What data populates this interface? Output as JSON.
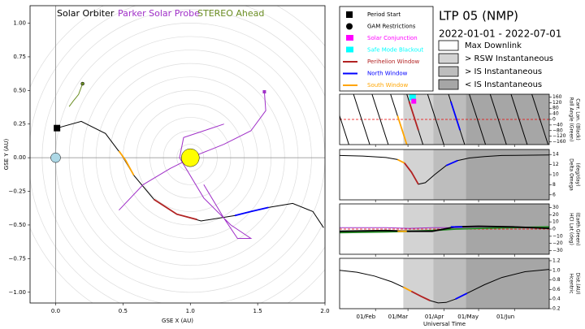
{
  "title": "LTP 05 (NMP)",
  "subtitle": "2022-01-01 - 2022-07-01",
  "legend": [
    {
      "name": "Period Start",
      "color": "#000000",
      "shape": "square"
    },
    {
      "name": "GAM Restrictions",
      "color": "#000000",
      "shape": "circle"
    },
    {
      "name": "Solar Conjunction",
      "color": "#ff00ff",
      "shape": "rect"
    },
    {
      "name": "Safe Mode Blackout",
      "color": "#00ffff",
      "shape": "rect"
    },
    {
      "name": "Perihelion Window",
      "color": "#b22222",
      "shape": "line"
    },
    {
      "name": "North Window",
      "color": "#0000ff",
      "shape": "line"
    },
    {
      "name": "South Window",
      "color": "#ffa500",
      "shape": "line"
    }
  ],
  "regions": [
    {
      "name": "Max Downlink",
      "color": "#ffffff",
      "start": 0,
      "end": 55
    },
    {
      "name": "> RSW Instantaneous",
      "color": "#d3d3d3",
      "start": 55,
      "end": 81
    },
    {
      "name": "> IS Instantaneous",
      "color": "#bdbdbd",
      "start": 81,
      "end": 109
    },
    {
      "name": "< IS Instantaneous",
      "color": "#a6a6a6",
      "start": 109,
      "end": 181
    }
  ],
  "chart_data": [
    {
      "type": "line",
      "xlabel": "GSE X (AU)",
      "ylabel": "GSE Y (AU)",
      "xlim": [
        -0.19,
        2.0
      ],
      "ylim": [
        -1.08,
        1.13
      ],
      "xticks": [
        {
          "value": 0,
          "label": "0.0"
        },
        0.5,
        {
          "value": 1,
          "label": "1.0"
        },
        1.5,
        {
          "value": 2,
          "label": "2.0"
        }
      ],
      "yticks": [
        {
          "value": -1,
          "label": "−1.00"
        },
        {
          "value": -0.75,
          "label": "−0.75"
        },
        {
          "value": -0.5,
          "label": "−0.50"
        },
        {
          "value": -0.25,
          "label": "−0.25"
        },
        {
          "value": 0,
          "label": "0.00"
        },
        {
          "value": 0.25,
          "label": "0.25"
        },
        {
          "value": 0.5,
          "label": "0.50"
        },
        {
          "value": 0.75,
          "label": "0.75"
        },
        {
          "value": 1,
          "label": "1.00"
        }
      ],
      "hlines": [
        0
      ],
      "vlines": [
        0
      ],
      "series": [
        {
          "name": "Solar Orbiter",
          "color": "#000000",
          "x": [
            0.01,
            0.19,
            0.37,
            0.49,
            0.58,
            0.73,
            0.9,
            1.08,
            1.33,
            1.58,
            1.76,
            1.91,
            1.99
          ],
          "values": [
            0.22,
            0.27,
            0.18,
            0.02,
            -0.13,
            -0.31,
            -0.42,
            -0.47,
            -0.43,
            -0.37,
            -0.34,
            -0.4,
            -0.52
          ]
        },
        {
          "name": "Parker Solar Probe",
          "color": "#a030c8",
          "x": [
            1.55,
            1.56,
            1.45,
            1.25,
            1.05,
            0.85,
            0.65,
            0.47,
            1.0,
            1.1,
            1.25,
            1.35,
            1.45,
            1.3,
            1.1,
            0.92,
            0.95,
            1.1,
            1.25
          ],
          "values": [
            0.49,
            0.35,
            0.2,
            0.1,
            0.02,
            -0.08,
            -0.2,
            -0.39,
            null,
            -0.2,
            -0.45,
            -0.6,
            -0.6,
            -0.5,
            -0.3,
            0.0,
            0.15,
            0.2,
            0.25
          ]
        },
        {
          "name": "STEREO Ahead",
          "color": "#6b8e23",
          "x": [
            0.2,
            0.17,
            0.13,
            0.1
          ],
          "values": [
            0.55,
            0.47,
            0.42,
            0.38
          ]
        },
        {
          "color": "#ffa500",
          "x": [
            0.47,
            0.52,
            0.58
          ],
          "values": [
            0.05,
            -0.02,
            -0.13
          ]
        },
        {
          "color": "#b22222",
          "x": [
            0.73,
            0.9,
            1.05
          ],
          "values": [
            -0.31,
            -0.42,
            -0.46
          ]
        },
        {
          "color": "#0000ff",
          "x": [
            1.33,
            1.45,
            1.58
          ],
          "values": [
            -0.43,
            -0.4,
            -0.37
          ]
        }
      ],
      "points": [
        {
          "color": "#add8e6",
          "shape": "circle",
          "size": 6,
          "x": 0,
          "value": 0
        },
        {
          "color": "#ffff00",
          "shape": "circle",
          "size": 11,
          "x": 1,
          "value": 0
        },
        {
          "color": "#000000",
          "shape": "square",
          "size": 4,
          "x": 0.01,
          "value": 0.22
        },
        {
          "color": "#a030c8",
          "shape": "square",
          "size": 2,
          "x": 1.55,
          "value": 0.49
        },
        {
          "color": "#6b8e23",
          "shape": "circle",
          "size": 2,
          "x": 0.2,
          "value": 0.55
        }
      ]
    },
    {
      "type": "line",
      "ylabel": [
        "Roll Angle (Green)",
        "Carr. Lon. (Black)"
      ],
      "xlim": [
        0,
        181
      ],
      "ylim": [
        -180,
        180
      ],
      "yticks": [
        {
          "value": -160,
          "label": "−160"
        },
        {
          "value": -120,
          "label": "−120"
        },
        {
          "value": -80,
          "label": "−80"
        },
        {
          "value": -40,
          "label": "−40"
        },
        0,
        40,
        80,
        120,
        160
      ],
      "hlines": [
        0
      ],
      "series": [
        {
          "color": "#000000",
          "x": [
            -6,
            8,
            8,
            12,
            26,
            26,
            28,
            42,
            42,
            44,
            58,
            58,
            58,
            72,
            72,
            76,
            90,
            90,
            94,
            108,
            108,
            112,
            126,
            126,
            130,
            144,
            144,
            148,
            162,
            162,
            166,
            180
          ],
          "values": [
            180,
            -180,
            null,
            180,
            -180,
            null,
            180,
            -180,
            null,
            180,
            -180,
            null,
            180,
            -180,
            null,
            180,
            -180,
            null,
            180,
            -180,
            null,
            180,
            -180,
            null,
            180,
            -180,
            null,
            180,
            -180,
            null,
            180,
            -180
          ]
        },
        {
          "color": "#ffa500",
          "x": [
            50,
            58
          ],
          "values": [
            26,
            -180
          ]
        },
        {
          "color": "#b22222",
          "x": [
            60,
            68
          ],
          "values": [
            129,
            -77
          ]
        },
        {
          "color": "#0000ff",
          "x": [
            96,
            104
          ],
          "values": [
            129,
            -77
          ]
        }
      ],
      "points": [
        {
          "color": "#00ffff",
          "shape": "square",
          "size": 4,
          "x": 63,
          "value": 160
        },
        {
          "color": "#ff00ff",
          "shape": "square",
          "size": 3,
          "x": 64,
          "value": 130
        }
      ]
    },
    {
      "type": "line",
      "ylabel": [
        "Delta Omega",
        "(deg/day)"
      ],
      "xlim": [
        0,
        181
      ],
      "ylim": [
        5,
        15
      ],
      "yticks": [
        6,
        8,
        10,
        12,
        14
      ],
      "series": [
        {
          "color": "#000000",
          "x": [
            0,
            20,
            40,
            50,
            56,
            62,
            68,
            74,
            82,
            92,
            102,
            112,
            125,
            140,
            181
          ],
          "values": [
            13.8,
            13.7,
            13.4,
            13.0,
            12.3,
            10.5,
            8.1,
            8.4,
            10.0,
            11.8,
            12.8,
            13.3,
            13.6,
            13.8,
            13.9
          ]
        },
        {
          "color": "#ffa500",
          "x": [
            50,
            56
          ],
          "values": [
            13.0,
            12.3
          ]
        },
        {
          "color": "#b22222",
          "x": [
            56,
            62,
            68
          ],
          "values": [
            12.3,
            10.5,
            8.1
          ]
        },
        {
          "color": "#0000ff",
          "x": [
            92,
            102
          ],
          "values": [
            11.8,
            12.8
          ]
        }
      ]
    },
    {
      "type": "line",
      "ylabel": [
        "HCI Lat (deg)",
        "(Earth Green)"
      ],
      "xlim": [
        0,
        181
      ],
      "ylim": [
        -35,
        35
      ],
      "yticks": [
        {
          "value": -30,
          "label": "−30"
        },
        {
          "value": -20,
          "label": "−20"
        },
        {
          "value": -10,
          "label": "−10"
        },
        0,
        10,
        20,
        30
      ],
      "hlines": [
        0
      ],
      "series": [
        {
          "color": "#a030c8",
          "x": [
            0,
            40,
            60,
            80,
            100,
            120,
            150,
            181
          ],
          "values": [
            2,
            2,
            1,
            2,
            2,
            3,
            3,
            2
          ]
        },
        {
          "color": "#228b22",
          "x": [
            0,
            40,
            60,
            80,
            100,
            120,
            150,
            181
          ],
          "values": [
            -5,
            -4,
            -3,
            -2,
            0,
            1,
            2,
            3
          ]
        },
        {
          "color": "#000000",
          "x": [
            0,
            40,
            60,
            80,
            100,
            120,
            150,
            181
          ],
          "values": [
            -3,
            -2,
            -3,
            -3,
            3,
            4,
            3,
            1
          ]
        },
        {
          "color": "#ffa500",
          "x": [
            50,
            58
          ],
          "values": [
            -3,
            -3
          ]
        },
        {
          "color": "#0000ff",
          "x": [
            96,
            106
          ],
          "values": [
            3,
            3
          ]
        }
      ]
    },
    {
      "type": "line",
      "ylabel": [
        "Hcentric",
        "Dist.(AU)"
      ],
      "xlim": [
        0,
        181
      ],
      "ylim": [
        0.2,
        1.25
      ],
      "yticks": [
        0.2,
        0.4,
        0.6,
        0.8,
        {
          "value": 1,
          "label": "1.0"
        },
        1.2
      ],
      "xticks": [
        {
          "value": 31,
          "label": "01/Feb"
        },
        {
          "value": 59,
          "label": "01/Mar"
        },
        {
          "value": 90,
          "label": "01/Apr"
        },
        {
          "value": 120,
          "label": "01/May"
        },
        {
          "value": 151,
          "label": "01/Jun"
        }
      ],
      "xlabel": "Universal Time",
      "series": [
        {
          "color": "#000000",
          "x": [
            0,
            15,
            30,
            45,
            55,
            62,
            70,
            78,
            85,
            92,
            100,
            110,
            125,
            140,
            160,
            181
          ],
          "values": [
            1.0,
            0.96,
            0.88,
            0.76,
            0.65,
            0.56,
            0.46,
            0.37,
            0.32,
            0.33,
            0.4,
            0.52,
            0.7,
            0.85,
            0.97,
            1.02
          ]
        },
        {
          "color": "#ffa500",
          "x": [
            55,
            62
          ],
          "values": [
            0.65,
            0.56
          ]
        },
        {
          "color": "#b22222",
          "x": [
            62,
            70,
            78
          ],
          "values": [
            0.56,
            0.46,
            0.37
          ]
        },
        {
          "color": "#0000ff",
          "x": [
            100,
            110
          ],
          "values": [
            0.4,
            0.52
          ]
        }
      ]
    }
  ]
}
